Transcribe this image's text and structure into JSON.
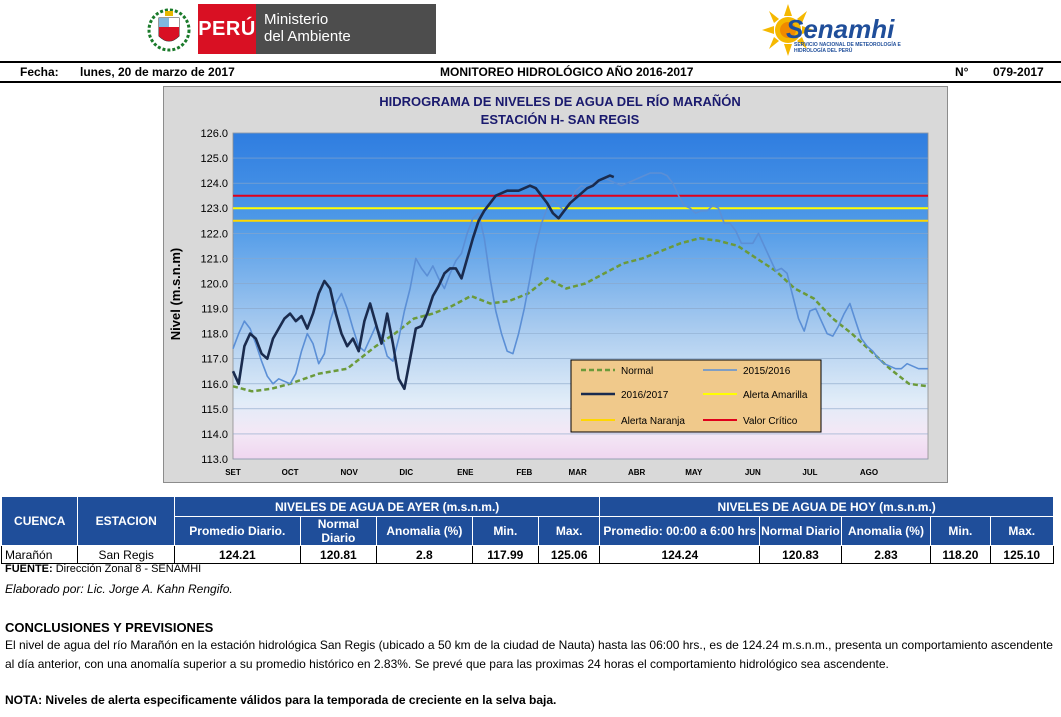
{
  "header": {
    "peru_label": "PERÚ",
    "ministry_line1": "Ministerio",
    "ministry_line2": "del Ambiente",
    "senamhi_label": "Senamhi",
    "senamhi_sub": "SERVICIO NACIONAL DE METEOROLOGÍA E HIDROLOGÍA DEL PERÚ",
    "fecha_label": "Fecha:",
    "fecha_value": "lunes, 20 de marzo de 2017",
    "center_title": "MONITOREO HIDROLÓGICO AÑO  2016-2017",
    "number_label": "N°",
    "number_value": "079-2017"
  },
  "chart_data": {
    "type": "line",
    "title": "HIDROGRAMA DE NIVELES DE AGUA DEL RÍO MARAÑÓN",
    "subtitle": "ESTACIÓN H- SAN REGIS",
    "ylabel": "Nivel (m.s.n.m)",
    "ylim": [
      113.0,
      126.0
    ],
    "yticks": [
      "113.0",
      "114.0",
      "115.0",
      "116.0",
      "117.0",
      "118.0",
      "119.0",
      "120.0",
      "121.0",
      "122.0",
      "123.0",
      "124.0",
      "125.0",
      "126.0"
    ],
    "xlim": [
      0,
      365
    ],
    "months": [
      "SET",
      "OCT",
      "NOV",
      "DIC",
      "ENE",
      "FEB",
      "MAR",
      "ABR",
      "MAY",
      "JUN",
      "JUL",
      "AGO"
    ],
    "month_starts": [
      0,
      30,
      61,
      91,
      122,
      153,
      181,
      212,
      242,
      273,
      303,
      334
    ],
    "thresholds": [
      {
        "name": "Alerta Amarilla",
        "value": 123.0,
        "color": "#ffff00"
      },
      {
        "name": "Alerta Naranja",
        "value": 122.5,
        "color": "#ffd700"
      },
      {
        "name": "Valor Crítico",
        "value": 123.5,
        "color": "#e0001b"
      }
    ],
    "series": [
      {
        "name": "Normal",
        "color": "#6b9a3a",
        "dash": true,
        "width": 2.5,
        "x": [
          0,
          10,
          20,
          30,
          45,
          60,
          75,
          85,
          95,
          105,
          115,
          125,
          135,
          145,
          155,
          160,
          165,
          175,
          185,
          195,
          205,
          215,
          225,
          235,
          245,
          255,
          265,
          275,
          285,
          295,
          305,
          315,
          325,
          335,
          345,
          355,
          365
        ],
        "y": [
          115.9,
          115.7,
          115.8,
          116.0,
          116.4,
          116.6,
          117.5,
          118.0,
          118.6,
          118.8,
          119.1,
          119.5,
          119.2,
          119.3,
          119.6,
          119.9,
          120.2,
          119.8,
          120.0,
          120.4,
          120.8,
          121.0,
          121.3,
          121.6,
          121.8,
          121.7,
          121.5,
          121.0,
          120.5,
          119.8,
          119.4,
          118.6,
          118.0,
          117.3,
          116.6,
          116.0,
          115.9
        ]
      },
      {
        "name": "2015/2016",
        "color": "#5b8fd6",
        "dash": false,
        "width": 1.6,
        "x": [
          0,
          3,
          6,
          9,
          12,
          15,
          18,
          21,
          24,
          27,
          30,
          33,
          36,
          39,
          42,
          45,
          48,
          51,
          54,
          57,
          60,
          63,
          66,
          69,
          72,
          75,
          78,
          81,
          84,
          87,
          90,
          93,
          96,
          99,
          102,
          105,
          108,
          111,
          114,
          117,
          120,
          123,
          126,
          129,
          132,
          135,
          138,
          141,
          144,
          147,
          150,
          153,
          156,
          159,
          162,
          165,
          168,
          171,
          174,
          177,
          180,
          183,
          186,
          189,
          192,
          195,
          198,
          201,
          204,
          207,
          210,
          213,
          216,
          219,
          222,
          225,
          228,
          231,
          234,
          237,
          240,
          243,
          246,
          249,
          252,
          255,
          258,
          261,
          264,
          267,
          270,
          273,
          276,
          279,
          282,
          285,
          288,
          291,
          294,
          297,
          300,
          303,
          306,
          309,
          312,
          315,
          318,
          321,
          324,
          327,
          330,
          333,
          336,
          339,
          342,
          345,
          348,
          351,
          354,
          357,
          360,
          363,
          365
        ],
        "y": [
          117.4,
          118.0,
          118.5,
          118.2,
          117.6,
          116.9,
          116.3,
          116.0,
          116.2,
          116.1,
          116.0,
          116.4,
          117.3,
          118.0,
          117.6,
          116.8,
          117.2,
          118.5,
          119.2,
          119.6,
          119.0,
          118.2,
          117.5,
          117.3,
          117.8,
          118.3,
          117.9,
          117.1,
          116.9,
          117.8,
          118.9,
          119.8,
          121.0,
          120.6,
          120.3,
          120.7,
          120.2,
          119.8,
          120.4,
          120.9,
          121.2,
          122.0,
          122.6,
          122.8,
          121.8,
          120.2,
          118.9,
          118.0,
          117.3,
          117.2,
          118.0,
          119.0,
          120.2,
          121.5,
          122.4,
          123.0,
          123.3,
          123.1,
          122.9,
          123.3,
          123.7,
          123.9,
          123.8,
          124.0,
          124.1,
          124.2,
          124.1,
          124.0,
          123.9,
          124.0,
          124.1,
          124.2,
          124.3,
          124.4,
          124.4,
          124.4,
          124.3,
          124.0,
          123.5,
          123.1,
          123.0,
          122.8,
          122.9,
          122.9,
          123.1,
          123.0,
          122.4,
          122.4,
          122.1,
          121.6,
          121.6,
          121.6,
          122.0,
          121.5,
          121.0,
          120.5,
          120.6,
          120.4,
          119.5,
          118.6,
          118.1,
          118.9,
          119.0,
          118.5,
          118.0,
          117.9,
          118.3,
          118.8,
          119.2,
          118.5,
          117.8,
          117.5,
          117.3,
          117.0,
          116.8,
          116.7,
          116.6,
          116.6,
          116.8,
          116.7,
          116.6,
          116.6,
          116.6
        ]
      },
      {
        "name": "2016/2017",
        "color": "#1a2b4e",
        "dash": false,
        "width": 2.6,
        "x": [
          0,
          3,
          6,
          9,
          12,
          15,
          18,
          21,
          24,
          27,
          30,
          33,
          36,
          39,
          42,
          45,
          48,
          51,
          54,
          57,
          60,
          63,
          66,
          69,
          72,
          75,
          78,
          81,
          84,
          87,
          90,
          93,
          96,
          99,
          102,
          105,
          108,
          111,
          114,
          117,
          120,
          123,
          126,
          129,
          132,
          135,
          138,
          141,
          144,
          147,
          150,
          153,
          156,
          159,
          162,
          165,
          168,
          171,
          174,
          177,
          180,
          183,
          186,
          189,
          192,
          195,
          198,
          200
        ],
        "y": [
          116.5,
          116.0,
          117.5,
          118.0,
          117.8,
          117.2,
          117.0,
          117.8,
          118.2,
          118.6,
          118.8,
          118.5,
          118.7,
          118.2,
          118.8,
          119.6,
          120.1,
          119.8,
          118.8,
          118.0,
          117.5,
          117.8,
          117.3,
          118.5,
          119.2,
          118.4,
          117.6,
          118.8,
          117.6,
          116.2,
          115.8,
          117.0,
          118.2,
          118.3,
          118.8,
          119.5,
          119.9,
          120.4,
          120.6,
          120.6,
          120.2,
          121.0,
          121.8,
          122.5,
          122.9,
          123.2,
          123.5,
          123.6,
          123.7,
          123.7,
          123.7,
          123.8,
          123.9,
          123.8,
          123.5,
          123.2,
          122.8,
          122.6,
          122.9,
          123.2,
          123.4,
          123.6,
          123.8,
          123.9,
          124.1,
          124.2,
          124.3,
          124.24
        ]
      }
    ],
    "legend": {
      "placement": "bottom-right",
      "entries": [
        "Normal",
        "2015/2016",
        "2016/2017",
        "Alerta Amarilla",
        "Alerta Naranja",
        "Valor Crítico"
      ]
    }
  },
  "table": {
    "col_cuenca": "CUENCA",
    "col_estacion": "ESTACION",
    "group_ayer": "NIVELES DE AGUA DE AYER (m.s.n.m.)",
    "group_hoy": "NIVELES DE AGUA DE HOY (m.s.n.m.)",
    "ayer_headers": [
      "Promedio  Diario.",
      "Normal Diario",
      "Anomalia (%)",
      "Min.",
      "Max."
    ],
    "hoy_headers": [
      "Promedio: 00:00 a 6:00 hrs",
      "Normal Diario",
      "Anomalia (%)",
      "Min.",
      "Max."
    ],
    "cuenca": "Marañón",
    "estacion": "San Regis",
    "ayer_values": [
      "124.21",
      "120.81",
      "2.8",
      "117.99",
      "125.06"
    ],
    "hoy_values": [
      "124.24",
      "120.83",
      "2.83",
      "118.20",
      "125.10"
    ]
  },
  "footer": {
    "fuente_label": "FUENTE:",
    "fuente_value": " Dirección Zonal 8 - SENAMHI",
    "elaborado": "Elaborado por: Lic. Jorge A. Kahn Rengifo.",
    "conclusion_title": "CONCLUSIONES Y PREVISIONES",
    "conclusion_text_a": "El nivel de agua del río Marañón  en la estación hidrológica San Regis (ubicado a 50 km de la ciudad de Nauta) hasta las 06:00 hrs., es de 124.24 m.s.n.m., presenta  un comportamiento ascendente al día anterior, con una anomalía superior  a su promedio  histórico  en 2.83%. Se prevé que para las proximas 24 horas el comportamiento hidrológico sea ascendente.",
    "nota": "NOTA: Niveles de alerta especificamente válidos para la temporada de creciente en la selva baja."
  }
}
